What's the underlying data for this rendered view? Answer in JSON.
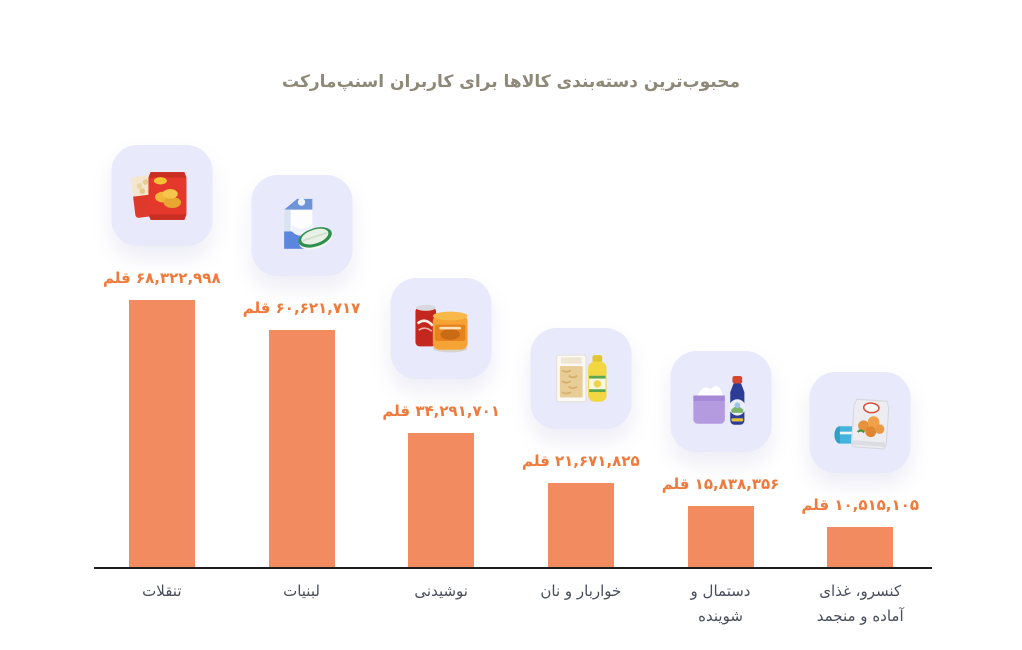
{
  "chart_data": {
    "type": "bar",
    "title": "محبوب‌ترین دسته‌بندی کالاها برای کاربران اسنپ‌مارکت",
    "unit": "قلم",
    "xlabel": "",
    "ylabel": "",
    "ylim": [
      0,
      68322998
    ],
    "grid": false,
    "legend": false,
    "bar_color": "#F28C60",
    "value_label_color": "#F0793C",
    "category_label_color": "#474D5A",
    "title_color": "#8E8878",
    "icon_tile_color": "#E8E9FA",
    "axis_color": "#1e1e1e",
    "categories": [
      "تنقلات",
      "لبنیات",
      "نوشیدنی",
      "خواربار و نان",
      "دستمال و شوینده",
      "کنسرو، غذای آماده و منجمد"
    ],
    "values": [
      68322998,
      60621717,
      34291701,
      21671825,
      15838356,
      10515105
    ],
    "bars": [
      {
        "category": "تنقلات",
        "value": 68322998,
        "value_label": "۶۸,۳۲۲,۹۹۸ قلم",
        "icon": "snacks-icon"
      },
      {
        "category": "لبنیات",
        "value": 60621717,
        "value_label": "۶۰,۶۲۱,۷۱۷ قلم",
        "icon": "dairy-icon"
      },
      {
        "category": "نوشیدنی",
        "value": 34291701,
        "value_label": "۳۴,۲۹۱,۷۰۱ قلم",
        "icon": "drinks-icon"
      },
      {
        "category": "خواربار و نان",
        "value": 21671825,
        "value_label": "۲۱,۶۷۱,۸۲۵ قلم",
        "icon": "grocery-icon"
      },
      {
        "category": "دستمال و\nشوینده",
        "value": 15838356,
        "value_label": "۱۵,۸۳۸,۳۵۶ قلم",
        "icon": "detergent-icon"
      },
      {
        "category": "کنسرو، غذای\nآماده و منجمد",
        "value": 10515105,
        "value_label": "۱۰,۵۱۵,۱۰۵ قلم",
        "icon": "frozen-icon"
      }
    ]
  }
}
